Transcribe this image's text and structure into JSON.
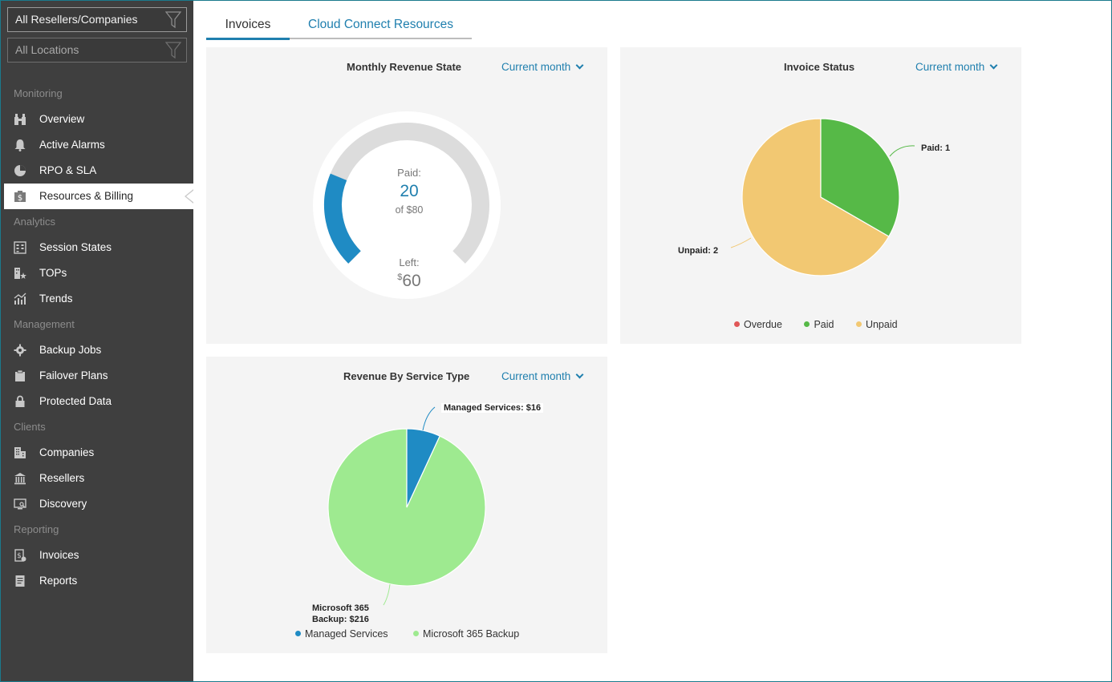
{
  "sidebar": {
    "filters": [
      {
        "label": "All Resellers/Companies"
      },
      {
        "label": "All Locations"
      }
    ],
    "sections": {
      "monitoring": "Monitoring",
      "analytics": "Analytics",
      "management": "Management",
      "clients": "Clients",
      "reporting": "Reporting"
    },
    "items": {
      "overview": "Overview",
      "active_alarms": "Active Alarms",
      "rpo_sla": "RPO & SLA",
      "resources_billing": "Resources & Billing",
      "session_states": "Session States",
      "tops": "TOPs",
      "trends": "Trends",
      "backup_jobs": "Backup Jobs",
      "failover_plans": "Failover Plans",
      "protected_data": "Protected Data",
      "companies": "Companies",
      "resellers": "Resellers",
      "discovery": "Discovery",
      "invoices": "Invoices",
      "reports": "Reports"
    },
    "active_item": "Resources & Billing"
  },
  "tabs": {
    "invoices": "Invoices",
    "cloud_connect": "Cloud Connect Resources",
    "active": "Invoices"
  },
  "monthly_revenue": {
    "title": "Monthly Revenue State",
    "period": "Current month",
    "paid_label": "Paid:",
    "paid_value": "20",
    "of_total": "of $80",
    "left_label": "Left:",
    "left_currency": "$",
    "left_value": "60",
    "paid_fraction": 0.25
  },
  "invoice_status": {
    "title": "Invoice Status",
    "period": "Current month",
    "label_paid": "Paid: 1",
    "label_unpaid": "Unpaid: 2",
    "legend": [
      {
        "label": "Overdue",
        "color": "#e05757"
      },
      {
        "label": "Paid",
        "color": "#56b947"
      },
      {
        "label": "Unpaid",
        "color": "#f2c872"
      }
    ]
  },
  "revenue_by_service": {
    "title": "Revenue By Service Type",
    "period": "Current month",
    "label_managed": "Managed Services: $16",
    "label_m365_line1": "Microsoft 365",
    "label_m365_line2": "Backup: $216",
    "legend": [
      {
        "label": "Managed Services",
        "color": "#1f8bc4"
      },
      {
        "label": "Microsoft 365 Backup",
        "color": "#9eea90"
      }
    ]
  },
  "chart_data": [
    {
      "type": "pie",
      "title": "Invoice Status",
      "categories": [
        "Overdue",
        "Paid",
        "Unpaid"
      ],
      "values": [
        0,
        1,
        2
      ],
      "colors": [
        "#e05757",
        "#56b947",
        "#f2c872"
      ],
      "legend": "bottom"
    },
    {
      "type": "pie",
      "title": "Revenue By Service Type",
      "categories": [
        "Managed Services",
        "Microsoft 365 Backup"
      ],
      "values": [
        16,
        216
      ],
      "colors": [
        "#1f8bc4",
        "#9eea90"
      ],
      "legend": "bottom"
    }
  ]
}
